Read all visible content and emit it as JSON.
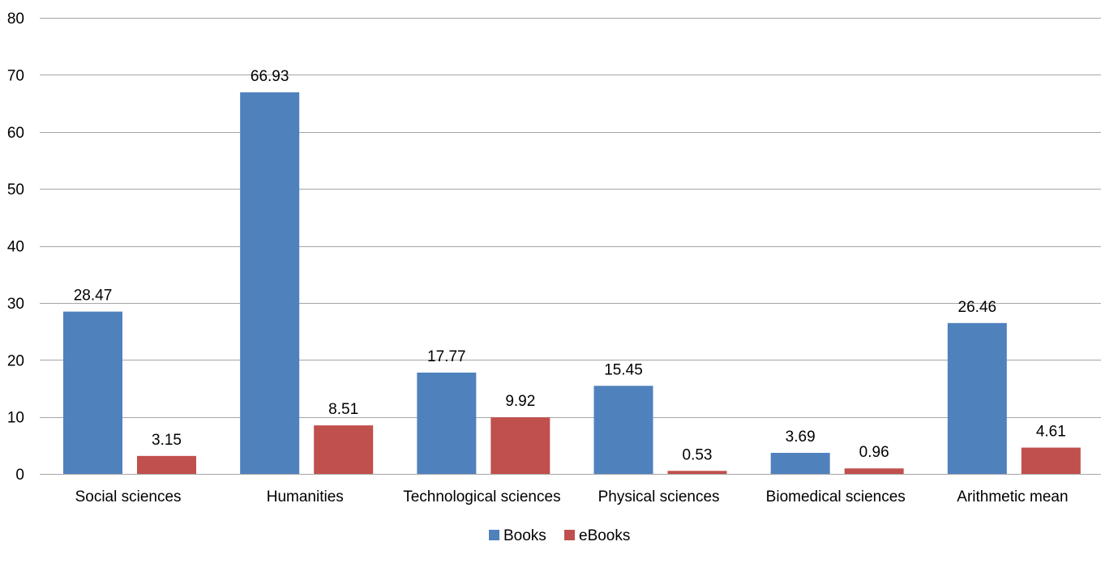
{
  "chart_data": {
    "type": "bar",
    "categories": [
      "Social sciences",
      "Humanities",
      "Technological sciences",
      "Physical sciences",
      "Biomedical sciences",
      "Arithmetic mean"
    ],
    "series": [
      {
        "name": "Books",
        "color": "#4F81BD",
        "values": [
          28.47,
          66.93,
          17.77,
          15.45,
          3.69,
          26.46
        ],
        "labels": [
          "28.47",
          "66.93",
          "17.77",
          "15.45",
          "3.69",
          "26.46"
        ]
      },
      {
        "name": "eBooks",
        "color": "#C0504D",
        "values": [
          3.15,
          8.51,
          9.92,
          0.53,
          0.96,
          4.61
        ],
        "labels": [
          "3.15",
          "8.51",
          "9.92",
          "0.53",
          "0.96",
          "4.61"
        ]
      }
    ],
    "ylim": [
      0,
      80
    ],
    "yticks": [
      "0",
      "10",
      "20",
      "30",
      "40",
      "50",
      "60",
      "70",
      "80"
    ],
    "grid": true,
    "gridColor": "#A6A6A6",
    "legendPosition": "bottom-center",
    "title": "",
    "xlabel": "",
    "ylabel": ""
  }
}
